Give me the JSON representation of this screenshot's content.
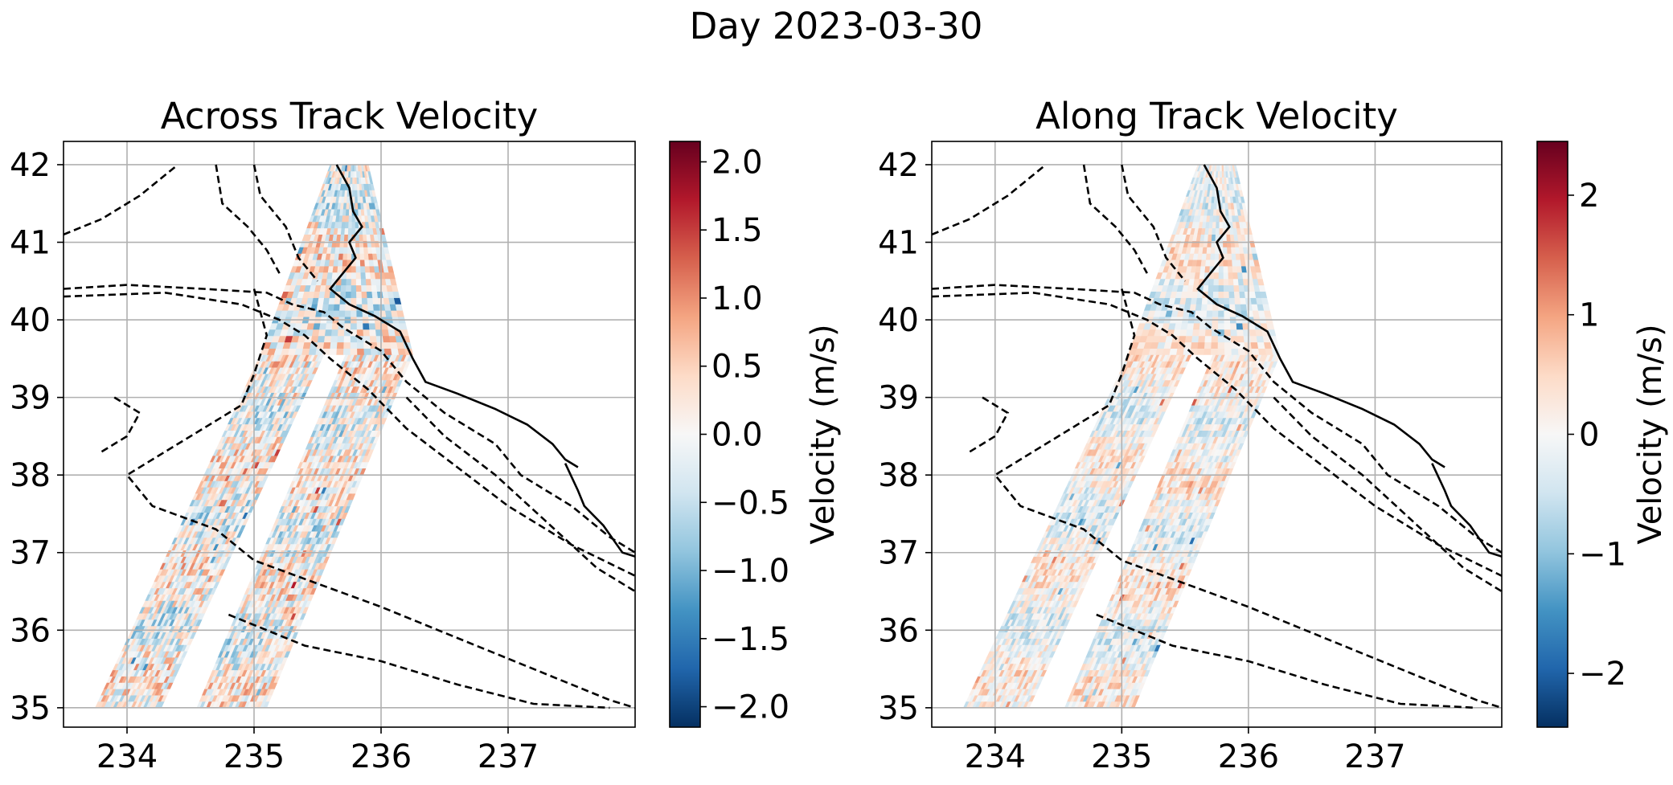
{
  "figure": {
    "suptitle": "Day 2023-03-30"
  },
  "chart_data": [
    {
      "type": "heatmap",
      "title": "Across Track Velocity",
      "xlabel": "",
      "ylabel": "",
      "xlim": [
        233.5,
        238.0
      ],
      "ylim": [
        34.75,
        42.3
      ],
      "x_ticks": [
        234,
        235,
        236,
        237
      ],
      "x_tick_labels": [
        "234",
        "235",
        "236",
        "237"
      ],
      "y_ticks": [
        35,
        36,
        37,
        38,
        39,
        40,
        41,
        42
      ],
      "y_tick_labels": [
        "35",
        "36",
        "37",
        "38",
        "39",
        "40",
        "41",
        "42"
      ],
      "grid": true,
      "colormap": "RdBu_r",
      "colorbar": {
        "label": "Velocity (m/s)",
        "range": [
          -2.15,
          2.15
        ],
        "ticks": [
          -2.0,
          -1.5,
          -1.0,
          -0.5,
          0.0,
          0.5,
          1.0,
          1.5,
          2.0
        ],
        "tick_labels": [
          "−2.0",
          "−1.5",
          "−1.0",
          "−0.5",
          "0.0",
          "0.5",
          "1.0",
          "1.5",
          "2.0"
        ]
      },
      "swaths": [
        {
          "corners": [
            [
              233.75,
              35.0
            ],
            [
              234.27,
              35.0
            ],
            [
              235.55,
              39.55
            ],
            [
              235.05,
              39.55
            ]
          ]
        },
        {
          "corners": [
            [
              234.55,
              35.0
            ],
            [
              235.1,
              35.0
            ],
            [
              236.25,
              39.55
            ],
            [
              235.72,
              39.55
            ]
          ]
        },
        {
          "corners": [
            [
              235.05,
              39.55
            ],
            [
              236.25,
              39.55
            ],
            [
              235.9,
              42.0
            ],
            [
              235.6,
              42.0
            ]
          ]
        }
      ]
    },
    {
      "type": "heatmap",
      "title": "Along Track Velocity",
      "xlabel": "",
      "ylabel": "",
      "xlim": [
        233.5,
        238.0
      ],
      "ylim": [
        34.75,
        42.3
      ],
      "x_ticks": [
        234,
        235,
        236,
        237
      ],
      "x_tick_labels": [
        "234",
        "235",
        "236",
        "237"
      ],
      "y_ticks": [
        35,
        36,
        37,
        38,
        39,
        40,
        41,
        42
      ],
      "y_tick_labels": [
        "35",
        "36",
        "37",
        "38",
        "39",
        "40",
        "41",
        "42"
      ],
      "grid": true,
      "colormap": "RdBu_r",
      "colorbar": {
        "label": "Velocity (m/s)",
        "range": [
          -2.45,
          2.45
        ],
        "ticks": [
          -2,
          -1,
          0,
          1,
          2
        ],
        "tick_labels": [
          "−2",
          "−1",
          "0",
          "1",
          "2"
        ]
      },
      "swaths": [
        {
          "corners": [
            [
              233.75,
              35.0
            ],
            [
              234.27,
              35.0
            ],
            [
              235.55,
              39.55
            ],
            [
              235.05,
              39.55
            ]
          ]
        },
        {
          "corners": [
            [
              234.55,
              35.0
            ],
            [
              235.1,
              35.0
            ],
            [
              236.25,
              39.55
            ],
            [
              235.72,
              39.55
            ]
          ]
        },
        {
          "corners": [
            [
              235.05,
              39.55
            ],
            [
              236.25,
              39.55
            ],
            [
              235.9,
              42.0
            ],
            [
              235.6,
              42.0
            ]
          ]
        }
      ]
    }
  ],
  "colors": {
    "colormap_stops": [
      "#053061",
      "#2166ac",
      "#4393c3",
      "#92c5de",
      "#d1e5f0",
      "#f7f7f7",
      "#fddbc7",
      "#f4a582",
      "#d6604d",
      "#b2182b",
      "#67001f"
    ],
    "grid": "#b0b0b0",
    "coastline": "#000000"
  }
}
